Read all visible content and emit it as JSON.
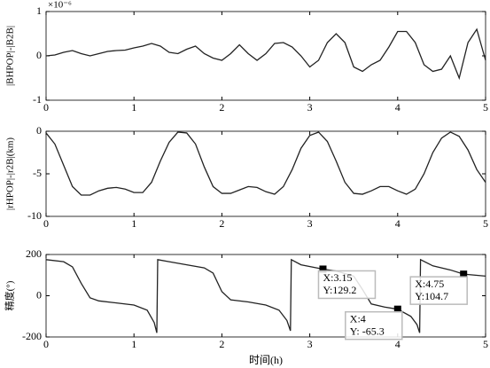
{
  "chart_data": [
    {
      "type": "line",
      "ylabel": "|BHPOP|-|B2B|",
      "exponent_label": "×10⁻⁶",
      "xlim": [
        0,
        5
      ],
      "xticks": [
        0,
        1,
        2,
        3,
        4,
        5
      ],
      "ylim": [
        -1,
        1
      ],
      "yticks": [
        -1,
        0,
        1
      ],
      "color": "#222222",
      "x": [
        0,
        0.1,
        0.2,
        0.3,
        0.4,
        0.5,
        0.6,
        0.7,
        0.8,
        0.9,
        1.0,
        1.1,
        1.2,
        1.3,
        1.4,
        1.5,
        1.6,
        1.7,
        1.8,
        1.9,
        2.0,
        2.1,
        2.2,
        2.3,
        2.4,
        2.5,
        2.6,
        2.7,
        2.8,
        2.9,
        3.0,
        3.1,
        3.2,
        3.3,
        3.4,
        3.5,
        3.6,
        3.7,
        3.8,
        3.9,
        4.0,
        4.1,
        4.2,
        4.3,
        4.4,
        4.5,
        4.6,
        4.7,
        4.8,
        4.9,
        5.0
      ],
      "values": [
        0,
        0.02,
        0.08,
        0.12,
        0.05,
        0.0,
        0.05,
        0.1,
        0.12,
        0.13,
        0.18,
        0.22,
        0.28,
        0.22,
        0.08,
        0.05,
        0.15,
        0.22,
        0.05,
        -0.05,
        -0.1,
        0.05,
        0.25,
        0.05,
        -0.1,
        0.05,
        0.28,
        0.3,
        0.2,
        0.0,
        -0.25,
        -0.1,
        0.3,
        0.5,
        0.3,
        -0.25,
        -0.35,
        -0.2,
        -0.1,
        0.2,
        0.55,
        0.55,
        0.3,
        -0.2,
        -0.35,
        -0.3,
        0.0,
        -0.5,
        0.3,
        0.6,
        -0.1
      ]
    },
    {
      "type": "line",
      "ylabel": "|rHPOP|-|r2B|(km)",
      "xlim": [
        0,
        5
      ],
      "xticks": [
        0,
        1,
        2,
        3,
        4,
        5
      ],
      "ylim": [
        -10,
        0
      ],
      "yticks": [
        -10,
        -5,
        0
      ],
      "color": "#222222",
      "x": [
        0,
        0.1,
        0.2,
        0.3,
        0.4,
        0.5,
        0.6,
        0.7,
        0.8,
        0.9,
        1.0,
        1.1,
        1.2,
        1.3,
        1.4,
        1.5,
        1.6,
        1.7,
        1.8,
        1.9,
        2.0,
        2.1,
        2.2,
        2.3,
        2.4,
        2.5,
        2.6,
        2.7,
        2.8,
        2.9,
        3.0,
        3.1,
        3.2,
        3.3,
        3.4,
        3.5,
        3.6,
        3.7,
        3.8,
        3.9,
        4.0,
        4.1,
        4.2,
        4.3,
        4.4,
        4.5,
        4.6,
        4.7,
        4.8,
        4.9,
        5.0
      ],
      "values": [
        -0.2,
        -1.5,
        -4,
        -6.5,
        -7.5,
        -7.5,
        -7,
        -6.7,
        -6.6,
        -6.8,
        -7.2,
        -7.2,
        -6,
        -3.5,
        -1.3,
        -0.1,
        -0.2,
        -1.5,
        -4.2,
        -6.5,
        -7.3,
        -7.3,
        -6.9,
        -6.5,
        -6.6,
        -7.1,
        -7.4,
        -6.5,
        -4.5,
        -2,
        -0.5,
        -0.1,
        -1.2,
        -3.5,
        -6,
        -7.3,
        -7.4,
        -7,
        -6.5,
        -6.5,
        -7,
        -7.4,
        -6.8,
        -5,
        -2.5,
        -0.8,
        -0.1,
        -0.6,
        -2.2,
        -4.5,
        -6
      ]
    },
    {
      "type": "line",
      "ylabel": "精度(°)",
      "xlabel": "时间(h)",
      "xlim": [
        0,
        5
      ],
      "xticks": [
        0,
        1,
        2,
        3,
        4,
        5
      ],
      "ylim": [
        -200,
        200
      ],
      "yticks": [
        -200,
        0,
        200
      ],
      "color": "#222222",
      "x": [
        0,
        0.2,
        0.3,
        0.4,
        0.5,
        0.6,
        0.8,
        1.0,
        1.15,
        1.23,
        1.26,
        1.27,
        1.4,
        1.6,
        1.8,
        1.9,
        2.0,
        2.1,
        2.3,
        2.5,
        2.65,
        2.74,
        2.78,
        2.79,
        2.9,
        3.15,
        3.3,
        3.5,
        3.6,
        3.7,
        3.85,
        4.0,
        4.15,
        4.22,
        4.25,
        4.26,
        4.4,
        4.6,
        4.75,
        5.0
      ],
      "values": [
        175,
        165,
        140,
        60,
        -10,
        -25,
        -35,
        -45,
        -70,
        -130,
        -180,
        175,
        165,
        150,
        135,
        110,
        20,
        -20,
        -30,
        -45,
        -70,
        -120,
        -170,
        175,
        150,
        129.2,
        120,
        95,
        30,
        -40,
        -55,
        -65.3,
        -100,
        -140,
        -180,
        175,
        145,
        125,
        104.7,
        95
      ],
      "annotations": [
        {
          "x": 3.15,
          "y": 129.2,
          "x_label": "X:3.15",
          "y_label": "Y:129.2"
        },
        {
          "x": 4,
          "y": -65.3,
          "x_label": "X:4",
          "y_label": "Y: -65.3"
        },
        {
          "x": 4.75,
          "y": 104.7,
          "x_label": "X:4.75",
          "y_label": "Y:104.7"
        }
      ]
    }
  ]
}
